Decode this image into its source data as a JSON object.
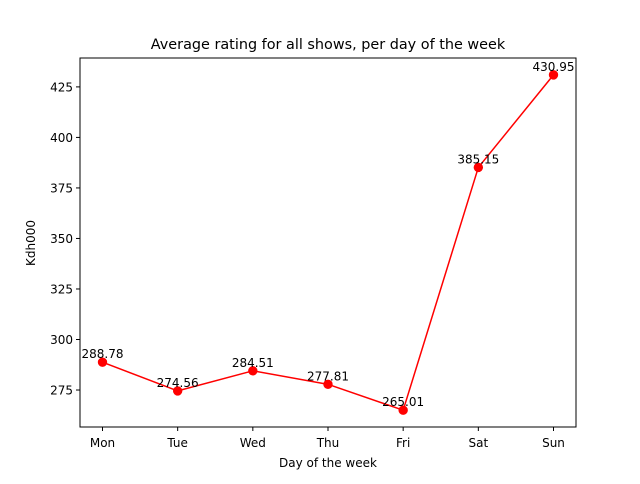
{
  "chart_data": {
    "type": "line",
    "title": "Average rating for all shows, per day of the week",
    "xlabel": "Day of the week",
    "ylabel": "Kdh000",
    "categories": [
      "Mon",
      "Tue",
      "Wed",
      "Thu",
      "Fri",
      "Sat",
      "Sun"
    ],
    "values": [
      288.78,
      274.56,
      284.51,
      277.81,
      265.01,
      385.15,
      430.95
    ],
    "data_labels": [
      "288.78",
      "274.56",
      "284.51",
      "277.81",
      "265.01",
      "385.15",
      "430.95"
    ],
    "ylim": [
      256.7,
      439.3
    ],
    "yticks": [
      275,
      300,
      325,
      350,
      375,
      400,
      425
    ],
    "ytick_labels": [
      "275",
      "300",
      "325",
      "350",
      "375",
      "400",
      "425"
    ],
    "grid": false,
    "legend": "none",
    "line_color": "#ff0000",
    "marker": "circle"
  }
}
